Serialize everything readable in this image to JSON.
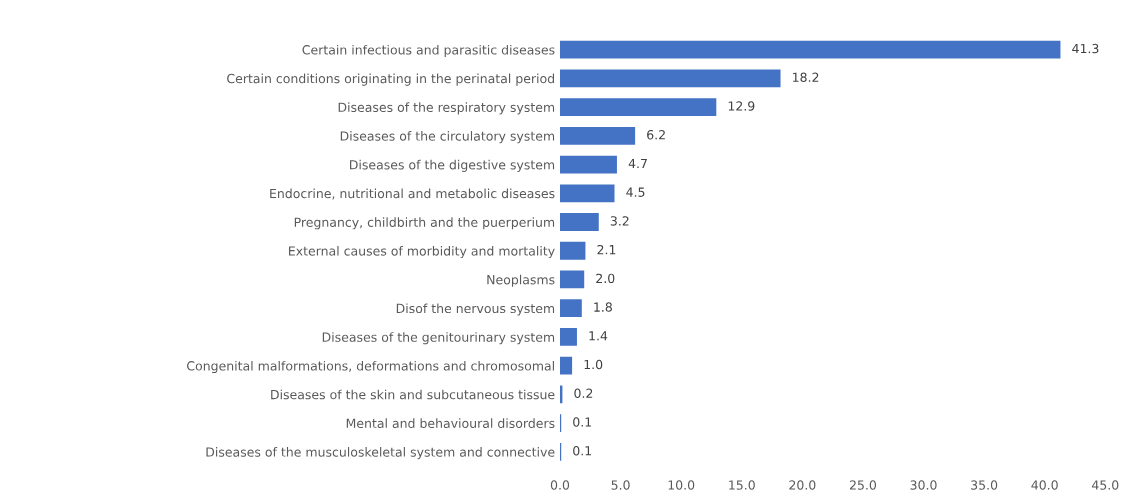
{
  "chart_data": {
    "type": "bar",
    "orientation": "horizontal",
    "categories": [
      "Certain infectious and parasitic diseases",
      "Certain conditions originating in the perinatal period",
      "Diseases of the respiratory system",
      "Diseases of the circulatory system",
      "Diseases of the digestive system",
      "Endocrine, nutritional and metabolic diseases",
      "Pregnancy, childbirth and the puerperium",
      "External causes of morbidity and mortality",
      "Neoplasms",
      "Disof the nervous system",
      "Diseases of the genitourinary system",
      "Congenital malformations, deformations and chromosomal",
      "Diseases of the skin and subcutaneous tissue",
      "Mental and behavioural disorders",
      "Diseases of the musculoskeletal system and connective"
    ],
    "values": [
      41.3,
      18.2,
      12.9,
      6.2,
      4.7,
      4.5,
      3.2,
      2.1,
      2.0,
      1.8,
      1.4,
      1.0,
      0.2,
      0.1,
      0.1
    ],
    "value_labels": [
      "41.3",
      "18.2",
      "12.9",
      "6.2",
      "4.7",
      "4.5",
      "3.2",
      "2.1",
      "2.0",
      "1.8",
      "1.4",
      "1.0",
      "0.2",
      "0.1",
      "0.1"
    ],
    "color": "#4472c4",
    "xlim": [
      0,
      45
    ],
    "xticks": [
      {
        "value": 0,
        "label": "0.0"
      },
      {
        "value": 5,
        "label": "5.0"
      },
      {
        "value": 10,
        "label": "10.0"
      },
      {
        "value": 15,
        "label": "15.0"
      },
      {
        "value": 20,
        "label": "20.0"
      },
      {
        "value": 25,
        "label": "25.0"
      },
      {
        "value": 30,
        "label": "30.0"
      },
      {
        "value": 35,
        "label": "35.0"
      },
      {
        "value": 40,
        "label": "40.0"
      },
      {
        "value": 45,
        "label": "45.0"
      }
    ],
    "grid": false,
    "legend": false
  }
}
